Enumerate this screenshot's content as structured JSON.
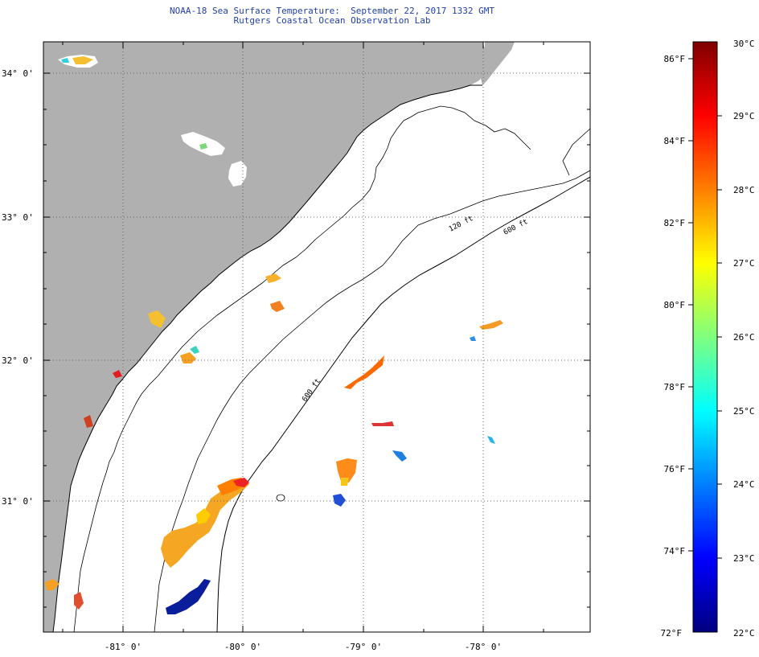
{
  "title": "NOAA-18 Sea Surface Temperature:  September 22, 2017 1332 GMT",
  "subtitle": "Rutgers Coastal Ocean Observation Lab",
  "map": {
    "lat_labels": [
      "34° 0'",
      "33° 0'",
      "32° 0'",
      "31° 0'"
    ],
    "lon_labels": [
      "-81° 0'",
      "-80° 0'",
      "-79° 0'",
      "-78° 0'"
    ],
    "isobath_labels": [
      "120 ft",
      "600 ft",
      "600 ft"
    ],
    "colors": {
      "land": "#b0b0b0",
      "graticule": "#666666",
      "coast": "#000000"
    }
  },
  "colorbar": {
    "f_labels": [
      "86°F",
      "84°F",
      "82°F",
      "80°F",
      "78°F",
      "76°F",
      "74°F",
      "72°F"
    ],
    "c_labels": [
      "30°C",
      "29°C",
      "28°C",
      "27°C",
      "26°C",
      "25°C",
      "24°C",
      "23°C",
      "22°C"
    ],
    "min_c": 22,
    "max_c": 30,
    "stops": [
      "#00007f",
      "#0000ff",
      "#007fff",
      "#00ffff",
      "#7fff7f",
      "#ffff00",
      "#ff7f00",
      "#ff0000",
      "#7f0000"
    ]
  }
}
